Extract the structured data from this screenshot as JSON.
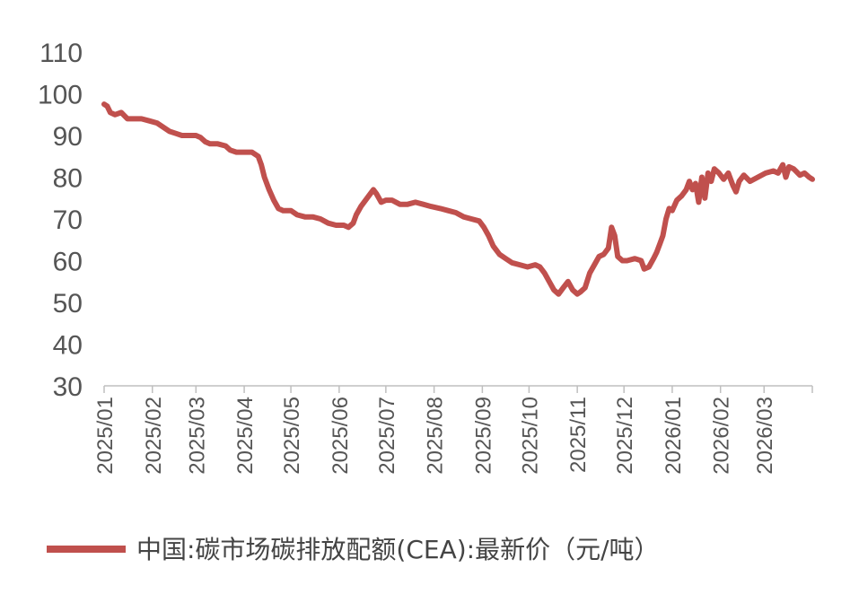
{
  "chart_data": {
    "type": "line",
    "title": "",
    "xlabel": "",
    "ylabel": "",
    "ylim": [
      30,
      110
    ],
    "yticks": [
      30,
      40,
      50,
      60,
      70,
      80,
      90,
      100,
      110
    ],
    "xlim": [
      "2025/01",
      "2026/04"
    ],
    "xticks": [
      "2025/01",
      "2025/02",
      "2025/03",
      "2025/04",
      "2025/05",
      "2025/06",
      "2025/07",
      "2025/08",
      "2025/09",
      "2025/10",
      "2025/11",
      "2025/12",
      "2026/01",
      "2026/02",
      "2026/03"
    ],
    "grid": false,
    "legend": "bottom",
    "series": [
      {
        "name": "中国:碳市场碳排放配额(CEA):最新价（元/吨）",
        "color": "#C0504D",
        "points": [
          [
            "2025-01-01",
            97.5
          ],
          [
            "2025-01-03",
            97.0
          ],
          [
            "2025-01-05",
            95.5
          ],
          [
            "2025-01-08",
            95.0
          ],
          [
            "2025-01-12",
            95.5
          ],
          [
            "2025-01-16",
            94.0
          ],
          [
            "2025-01-20",
            94.0
          ],
          [
            "2025-01-25",
            94.0
          ],
          [
            "2025-01-30",
            93.5
          ],
          [
            "2025-02-04",
            93.0
          ],
          [
            "2025-02-08",
            92.0
          ],
          [
            "2025-02-12",
            91.0
          ],
          [
            "2025-02-16",
            90.5
          ],
          [
            "2025-02-20",
            90.0
          ],
          [
            "2025-02-25",
            90.0
          ],
          [
            "2025-03-01",
            90.0
          ],
          [
            "2025-03-04",
            89.5
          ],
          [
            "2025-03-07",
            88.5
          ],
          [
            "2025-03-10",
            88.0
          ],
          [
            "2025-03-15",
            88.0
          ],
          [
            "2025-03-20",
            87.5
          ],
          [
            "2025-03-23",
            86.5
          ],
          [
            "2025-03-27",
            86.0
          ],
          [
            "2025-04-01",
            86.0
          ],
          [
            "2025-04-06",
            86.0
          ],
          [
            "2025-04-10",
            85.0
          ],
          [
            "2025-04-12",
            83.0
          ],
          [
            "2025-04-14",
            80.0
          ],
          [
            "2025-04-17",
            77.0
          ],
          [
            "2025-04-20",
            74.5
          ],
          [
            "2025-04-23",
            72.5
          ],
          [
            "2025-04-26",
            72.0
          ],
          [
            "2025-05-01",
            72.0
          ],
          [
            "2025-05-05",
            71.0
          ],
          [
            "2025-05-10",
            70.5
          ],
          [
            "2025-05-15",
            70.5
          ],
          [
            "2025-05-20",
            70.0
          ],
          [
            "2025-05-25",
            69.0
          ],
          [
            "2025-05-30",
            68.5
          ],
          [
            "2025-06-04",
            68.5
          ],
          [
            "2025-06-07",
            68.0
          ],
          [
            "2025-06-10",
            69.0
          ],
          [
            "2025-06-12",
            71.0
          ],
          [
            "2025-06-15",
            73.0
          ],
          [
            "2025-06-18",
            74.5
          ],
          [
            "2025-06-21",
            76.0
          ],
          [
            "2025-06-23",
            77.0
          ],
          [
            "2025-06-25",
            76.0
          ],
          [
            "2025-06-28",
            74.0
          ],
          [
            "2025-07-01",
            74.5
          ],
          [
            "2025-07-05",
            74.5
          ],
          [
            "2025-07-10",
            73.5
          ],
          [
            "2025-07-15",
            73.5
          ],
          [
            "2025-07-20",
            74.0
          ],
          [
            "2025-07-25",
            73.5
          ],
          [
            "2025-07-30",
            73.0
          ],
          [
            "2025-08-05",
            72.5
          ],
          [
            "2025-08-10",
            72.0
          ],
          [
            "2025-08-15",
            71.5
          ],
          [
            "2025-08-20",
            70.5
          ],
          [
            "2025-08-25",
            70.0
          ],
          [
            "2025-08-30",
            69.5
          ],
          [
            "2025-09-02",
            68.0
          ],
          [
            "2025-09-05",
            66.0
          ],
          [
            "2025-09-08",
            63.5
          ],
          [
            "2025-09-12",
            61.5
          ],
          [
            "2025-09-16",
            60.5
          ],
          [
            "2025-09-20",
            59.5
          ],
          [
            "2025-09-25",
            59.0
          ],
          [
            "2025-09-30",
            58.5
          ],
          [
            "2025-10-05",
            59.0
          ],
          [
            "2025-10-08",
            58.5
          ],
          [
            "2025-10-11",
            57.0
          ],
          [
            "2025-10-14",
            55.0
          ],
          [
            "2025-10-17",
            53.0
          ],
          [
            "2025-10-20",
            52.0
          ],
          [
            "2025-10-23",
            53.5
          ],
          [
            "2025-10-26",
            55.0
          ],
          [
            "2025-10-29",
            53.0
          ],
          [
            "2025-11-01",
            52.0
          ],
          [
            "2025-11-03",
            52.5
          ],
          [
            "2025-11-06",
            53.5
          ],
          [
            "2025-11-09",
            57.0
          ],
          [
            "2025-11-12",
            59.0
          ],
          [
            "2025-11-15",
            61.0
          ],
          [
            "2025-11-18",
            61.5
          ],
          [
            "2025-11-21",
            63.0
          ],
          [
            "2025-11-23",
            68.0
          ],
          [
            "2025-11-25",
            66.0
          ],
          [
            "2025-11-27",
            61.0
          ],
          [
            "2025-11-30",
            60.0
          ],
          [
            "2025-12-03",
            60.0
          ],
          [
            "2025-12-08",
            60.5
          ],
          [
            "2025-12-12",
            60.0
          ],
          [
            "2025-12-14",
            58.0
          ],
          [
            "2025-12-17",
            58.5
          ],
          [
            "2025-12-20",
            60.5
          ],
          [
            "2025-12-22",
            62.0
          ],
          [
            "2025-12-24",
            64.0
          ],
          [
            "2025-12-26",
            66.0
          ],
          [
            "2025-12-28",
            70.0
          ],
          [
            "2025-12-30",
            72.5
          ],
          [
            "2026-01-01",
            72.0
          ],
          [
            "2026-01-04",
            74.5
          ],
          [
            "2026-01-07",
            75.5
          ],
          [
            "2026-01-10",
            77.0
          ],
          [
            "2026-01-12",
            79.0
          ],
          [
            "2026-01-14",
            77.0
          ],
          [
            "2026-01-16",
            78.5
          ],
          [
            "2026-01-18",
            74.0
          ],
          [
            "2026-01-20",
            80.0
          ],
          [
            "2026-01-22",
            75.0
          ],
          [
            "2026-01-24",
            81.0
          ],
          [
            "2026-01-26",
            79.0
          ],
          [
            "2026-01-28",
            82.0
          ],
          [
            "2026-01-31",
            81.0
          ],
          [
            "2026-02-03",
            79.5
          ],
          [
            "2026-02-06",
            81.0
          ],
          [
            "2026-02-09",
            78.0
          ],
          [
            "2026-02-11",
            76.5
          ],
          [
            "2026-02-13",
            79.0
          ],
          [
            "2026-02-16",
            80.5
          ],
          [
            "2026-02-20",
            79.0
          ],
          [
            "2026-02-25",
            80.0
          ],
          [
            "2026-03-02",
            81.0
          ],
          [
            "2026-03-07",
            81.5
          ],
          [
            "2026-03-10",
            81.0
          ],
          [
            "2026-03-13",
            83.0
          ],
          [
            "2026-03-15",
            80.0
          ],
          [
            "2026-03-17",
            82.5
          ],
          [
            "2026-03-20",
            82.0
          ],
          [
            "2026-03-24",
            80.5
          ],
          [
            "2026-03-27",
            81.0
          ],
          [
            "2026-03-30",
            80.0
          ],
          [
            "2026-04-01",
            79.5
          ]
        ]
      }
    ]
  }
}
